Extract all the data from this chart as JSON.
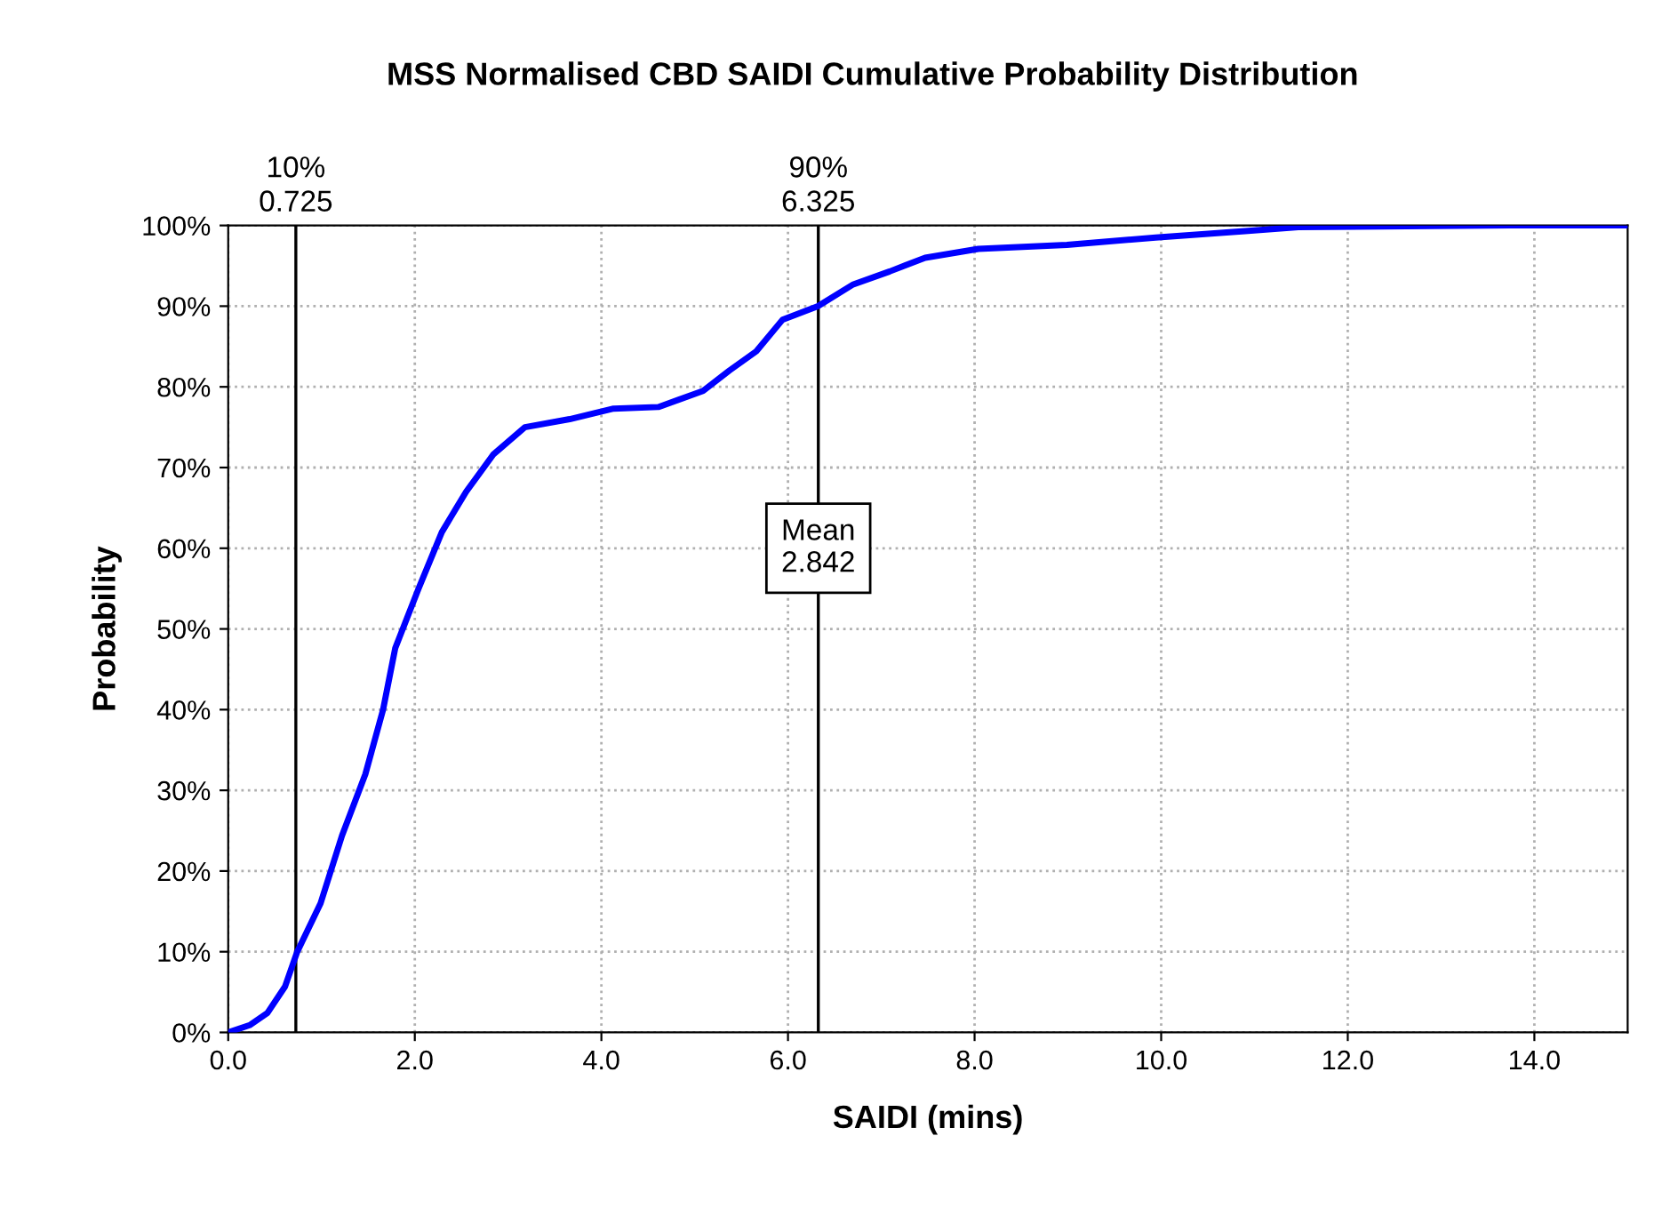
{
  "chart_data": {
    "type": "line",
    "title": "MSS Normalised CBD SAIDI Cumulative Probability Distribution",
    "xlabel": "SAIDI (mins)",
    "ylabel": "Probability",
    "series": [
      {
        "color": "#0000ff",
        "x": [
          0,
          0.23,
          0.42,
          0.61,
          0.74,
          0.99,
          1.22,
          1.47,
          1.66,
          1.79,
          2.04,
          2.29,
          2.55,
          2.84,
          3.18,
          3.66,
          4.13,
          4.61,
          5.09,
          5.37,
          5.66,
          5.94,
          6.32,
          6.7,
          7.09,
          7.47,
          8.04,
          8.99,
          9.94,
          10.9,
          11.47,
          13.75,
          15
        ],
        "values": [
          0,
          0.9,
          2.4,
          5.7,
          10,
          16,
          24.4,
          32,
          40,
          47.6,
          55,
          62,
          67,
          71.6,
          75,
          76,
          77.3,
          77.5,
          79.5,
          82,
          84.4,
          88.3,
          90,
          92.7,
          94.3,
          96,
          97.1,
          97.6,
          98.5,
          99.3,
          99.8,
          100,
          100
        ]
      }
    ],
    "xlim": [
      0,
      15
    ],
    "xticks": [
      {
        "value": 0,
        "label": "0.0"
      },
      {
        "value": 2,
        "label": "2.0"
      },
      {
        "value": 4,
        "label": "4.0"
      },
      {
        "value": 6,
        "label": "6.0"
      },
      {
        "value": 8,
        "label": "8.0"
      },
      {
        "value": 10,
        "label": "10.0"
      },
      {
        "value": 12,
        "label": "12.0"
      },
      {
        "value": 14,
        "label": "14.0"
      }
    ],
    "ylim": [
      0,
      100
    ],
    "yticks": [
      {
        "value": 0,
        "label": "0%"
      },
      {
        "value": 10,
        "label": "10%"
      },
      {
        "value": 20,
        "label": "20%"
      },
      {
        "value": 30,
        "label": "30%"
      },
      {
        "value": 40,
        "label": "40%"
      },
      {
        "value": 50,
        "label": "50%"
      },
      {
        "value": 60,
        "label": "60%"
      },
      {
        "value": 70,
        "label": "70%"
      },
      {
        "value": 80,
        "label": "80%"
      },
      {
        "value": 90,
        "label": "90%"
      },
      {
        "value": 100,
        "label": "100%"
      }
    ],
    "ref_lines": [
      {
        "axis": "x",
        "value": 0.725,
        "label": "10%\n0.725",
        "color": "#000000"
      },
      {
        "axis": "x",
        "value": 6.325,
        "label": "90%\n6.325",
        "color": "#000000"
      }
    ],
    "annotations": [
      {
        "text": "Mean\n2.842",
        "x": 6.325,
        "y": 60
      }
    ],
    "grid": true,
    "line_style": "solid"
  }
}
